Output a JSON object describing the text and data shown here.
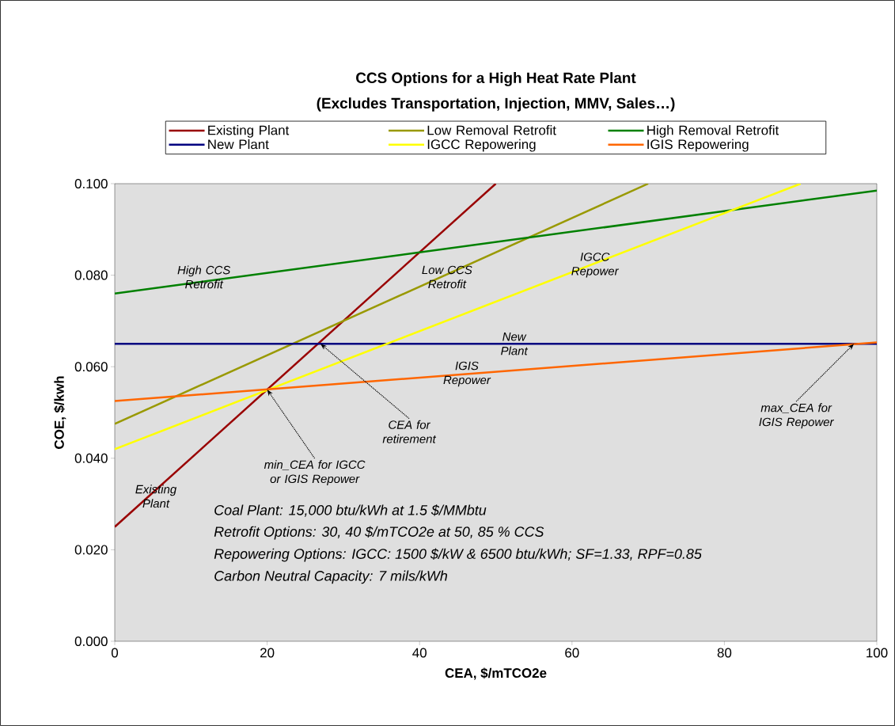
{
  "chart_data": {
    "type": "line",
    "title": "CCS Options for a High Heat Rate Plant",
    "subtitle": "(Excludes Transportation, Injection, MMV, Sales…)",
    "xlabel": "CEA, $/mTCO2e",
    "ylabel": "COE, $/kwh",
    "xlim": [
      0,
      100
    ],
    "xticks": [
      0,
      20,
      40,
      60,
      80,
      100
    ],
    "ylim": [
      0,
      0.1
    ],
    "yticks": [
      {
        "value": 0,
        "label": "0.000"
      },
      {
        "value": 0.02,
        "label": "0.020"
      },
      {
        "value": 0.04,
        "label": "0.040"
      },
      {
        "value": 0.06,
        "label": "0.060"
      },
      {
        "value": 0.08,
        "label": "0.080"
      },
      {
        "value": 0.1,
        "label": "0.100"
      }
    ],
    "legend": "top",
    "grid": false,
    "marker": "none",
    "line_style": "solid",
    "series": [
      {
        "name": "Existing Plant",
        "color": "#990000",
        "x": [
          0,
          50
        ],
        "values": [
          0.025,
          0.1
        ]
      },
      {
        "name": "Low Removal Retrofit",
        "color": "#999900",
        "x": [
          0,
          70
        ],
        "values": [
          0.0475,
          0.1
        ]
      },
      {
        "name": "High Removal Retrofit",
        "color": "#008000",
        "x": [
          0,
          100
        ],
        "values": [
          0.076,
          0.0985
        ]
      },
      {
        "name": "New Plant",
        "color": "#000080",
        "x": [
          0,
          100
        ],
        "values": [
          0.065,
          0.065
        ]
      },
      {
        "name": "IGCC Repowering",
        "color": "#ffff00",
        "x": [
          0,
          90
        ],
        "values": [
          0.042,
          0.1
        ]
      },
      {
        "name": "IGIS Repowering",
        "color": "#ff6600",
        "x": [
          0,
          100
        ],
        "values": [
          0.0525,
          0.0653
        ]
      }
    ],
    "annotations": [
      {
        "text": "High CCS Retrofit",
        "x": 11.7,
        "y": 0.0796
      },
      {
        "text": "Low CCS Retrofit",
        "x": 43.6,
        "y": 0.0796
      },
      {
        "text": "IGCC Repower",
        "x": 63,
        "y": 0.0822
      },
      {
        "text": "New Plant",
        "x": 52.4,
        "y": 0.065
      },
      {
        "text": "IGIS Repower",
        "x": 46.2,
        "y": 0.0584
      },
      {
        "text": "Existing Plant",
        "x": 5.4,
        "y": 0.0317
      },
      {
        "text": "min_CEA for IGCC or IGIS Repower",
        "x": 20,
        "y": 0.055
      },
      {
        "text": "CEA for retirement",
        "x": 27,
        "y": 0.065
      },
      {
        "text": "max_CEA for IGIS Repower",
        "x": 97,
        "y": 0.065
      },
      "Coal Plant:  15,000 btu/kWh at 1.5 $/MMbtu",
      "Retrofit Options: 30, 40 $/mTCO2e at 50, 85 % CCS",
      "Repowering Options: IGCC: 1500 $/kW & 6500 btu/kWh; SF=1.33, RPF=0.85",
      "Carbon Neutral Capacity: 7 mils/kWh"
    ]
  }
}
